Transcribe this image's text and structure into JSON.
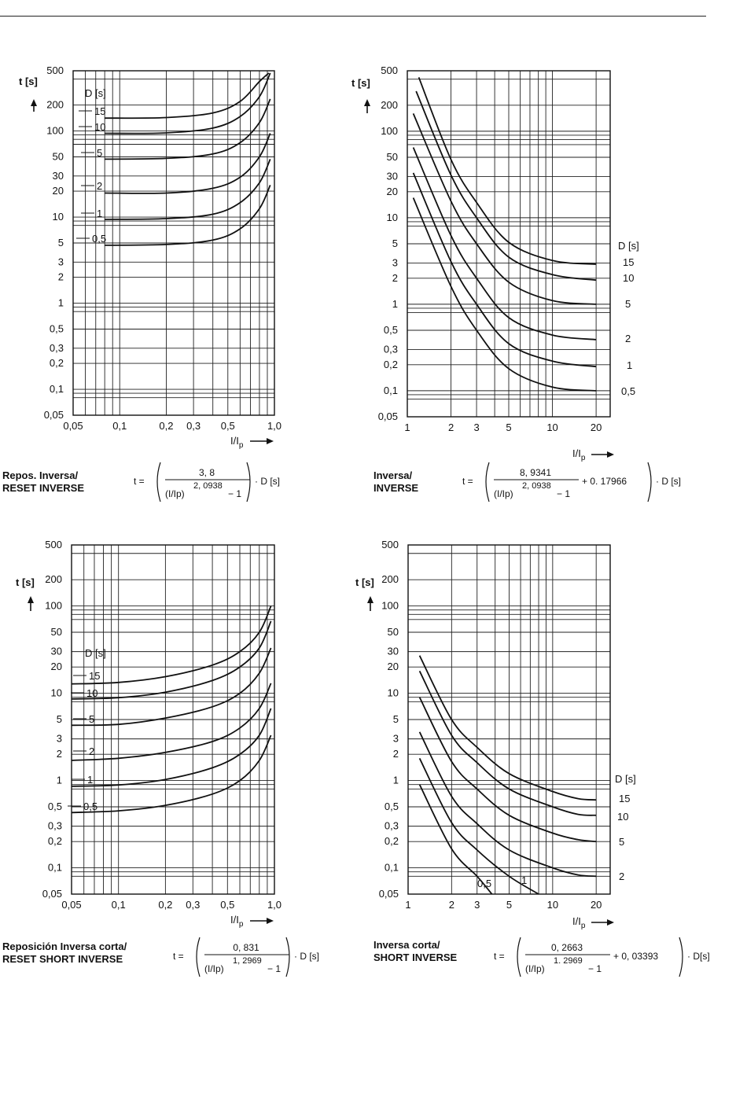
{
  "chart_data": [
    {
      "id": "reset-inverse",
      "type": "line",
      "title": "Repos. Inversa/",
      "subtitle": "RESET INVERSE",
      "xlabel": "I/Ip",
      "ylabel": "t [s]",
      "legend_title": "D [s]",
      "xscale": "log",
      "yscale": "log",
      "xlim": [
        0.05,
        1.0
      ],
      "ylim": [
        0.05,
        500
      ],
      "x_ticks": [
        "0,05",
        "0,1",
        "0,2",
        "0,3",
        "0,5",
        "1,0"
      ],
      "y_ticks": [
        "0,05",
        "0,1",
        "0,2",
        "0,3",
        "0,5",
        "1",
        "2",
        "3",
        "5",
        "10",
        "20",
        "30",
        "50",
        "100",
        "200",
        "500"
      ],
      "formula": {
        "lhs": "t =",
        "numerator": "3, 8",
        "denominator": "(I/Ip)",
        "exponent": "2, 0938",
        "minus": "− 1",
        "tail": "· D  [s]"
      },
      "series": [
        {
          "name": "15",
          "values": [
            [
              0.08,
              141
            ],
            [
              0.2,
              143
            ],
            [
              0.4,
              162
            ],
            [
              0.6,
              220
            ],
            [
              0.8,
              375
            ],
            [
              0.92,
              470
            ]
          ]
        },
        {
          "name": "10",
          "values": [
            [
              0.08,
              94
            ],
            [
              0.2,
              95
            ],
            [
              0.4,
              108
            ],
            [
              0.6,
              147
            ],
            [
              0.8,
              250
            ],
            [
              0.94,
              470
            ]
          ]
        },
        {
          "name": "5",
          "values": [
            [
              0.08,
              47
            ],
            [
              0.2,
              48
            ],
            [
              0.4,
              54
            ],
            [
              0.6,
              73
            ],
            [
              0.8,
              125
            ],
            [
              0.94,
              235
            ]
          ]
        },
        {
          "name": "2",
          "values": [
            [
              0.08,
              19
            ],
            [
              0.2,
              19
            ],
            [
              0.4,
              21.6
            ],
            [
              0.6,
              29
            ],
            [
              0.8,
              50
            ],
            [
              0.94,
              94
            ]
          ]
        },
        {
          "name": "1",
          "values": [
            [
              0.08,
              9.4
            ],
            [
              0.2,
              9.6
            ],
            [
              0.4,
              10.8
            ],
            [
              0.6,
              14.7
            ],
            [
              0.8,
              25
            ],
            [
              0.94,
              47
            ]
          ]
        },
        {
          "name": "0,5",
          "values": [
            [
              0.08,
              4.7
            ],
            [
              0.2,
              4.8
            ],
            [
              0.4,
              5.4
            ],
            [
              0.6,
              7.3
            ],
            [
              0.8,
              12.5
            ],
            [
              0.94,
              23.5
            ]
          ]
        }
      ]
    },
    {
      "id": "inverse",
      "type": "line",
      "title": "Inversa/",
      "subtitle": "INVERSE",
      "xlabel": "I/Ip",
      "ylabel": "t [s]",
      "legend_title": "D [s]",
      "xscale": "log",
      "yscale": "log",
      "xlim": [
        1,
        25
      ],
      "ylim": [
        0.05,
        500
      ],
      "x_ticks": [
        "1",
        "2",
        "3",
        "5",
        "10",
        "20"
      ],
      "y_ticks": [
        "0,05",
        "0,1",
        "0,2",
        "0,3",
        "0,5",
        "1",
        "2",
        "3",
        "5",
        "10",
        "20",
        "30",
        "50",
        "100",
        "200",
        "500"
      ],
      "formula": {
        "lhs": "t =",
        "numerator": "8, 9341",
        "denominator": "(I/Ip)",
        "exponent": "2, 0938",
        "minus": "− 1",
        "plus": "+ 0. 17966",
        "tail": "· D [s]"
      },
      "series": [
        {
          "name": "15",
          "values": [
            [
              1.2,
              420
            ],
            [
              2,
              47
            ],
            [
              3,
              15
            ],
            [
              5,
              5.2
            ],
            [
              10,
              3.2
            ],
            [
              20,
              2.9
            ]
          ]
        },
        {
          "name": "10",
          "values": [
            [
              1.15,
              290
            ],
            [
              2,
              31
            ],
            [
              3,
              10
            ],
            [
              5,
              3.5
            ],
            [
              10,
              2.2
            ],
            [
              20,
              1.9
            ]
          ]
        },
        {
          "name": "5",
          "values": [
            [
              1.1,
              160
            ],
            [
              2,
              15.5
            ],
            [
              3,
              5
            ],
            [
              5,
              1.8
            ],
            [
              10,
              1.1
            ],
            [
              20,
              1.0
            ]
          ]
        },
        {
          "name": "2",
          "values": [
            [
              1.1,
              65
            ],
            [
              2,
              6.2
            ],
            [
              3,
              2
            ],
            [
              5,
              0.7
            ],
            [
              10,
              0.44
            ],
            [
              20,
              0.39
            ]
          ]
        },
        {
          "name": "1",
          "values": [
            [
              1.1,
              33
            ],
            [
              2,
              3.1
            ],
            [
              3,
              1
            ],
            [
              5,
              0.35
            ],
            [
              10,
              0.22
            ],
            [
              20,
              0.19
            ]
          ]
        },
        {
          "name": "0,5",
          "values": [
            [
              1.1,
              17
            ],
            [
              2,
              1.6
            ],
            [
              3,
              0.5
            ],
            [
              5,
              0.18
            ],
            [
              10,
              0.11
            ],
            [
              20,
              0.1
            ]
          ]
        }
      ]
    },
    {
      "id": "reset-short-inverse",
      "type": "line",
      "title": "Reposición Inversa corta/",
      "subtitle": "RESET SHORT INVERSE",
      "xlabel": "I/Ip",
      "ylabel": "t [s]",
      "legend_title": "D [s]",
      "xscale": "log",
      "yscale": "log",
      "xlim": [
        0.05,
        1.0
      ],
      "ylim": [
        0.05,
        500
      ],
      "x_ticks": [
        "0,05",
        "0,1",
        "0,2",
        "0,3",
        "0,5",
        "1,0"
      ],
      "y_ticks": [
        "0,05",
        "0,1",
        "0,2",
        "0,3",
        "0,5",
        "1",
        "2",
        "3",
        "5",
        "10",
        "20",
        "30",
        "50",
        "100",
        "200",
        "500"
      ],
      "formula": {
        "lhs": "t =",
        "numerator": "0, 831",
        "denominator": "(I/Ip)",
        "exponent": "1, 2969",
        "minus": "− 1",
        "tail": "· D  [s]"
      },
      "series": [
        {
          "name": "15",
          "values": [
            [
              0.05,
              12.8
            ],
            [
              0.1,
              13.3
            ],
            [
              0.2,
              15.5
            ],
            [
              0.4,
              21
            ],
            [
              0.6,
              30
            ],
            [
              0.8,
              50
            ],
            [
              0.95,
              100
            ]
          ]
        },
        {
          "name": "10",
          "values": [
            [
              0.05,
              8.6
            ],
            [
              0.1,
              8.9
            ],
            [
              0.2,
              10.3
            ],
            [
              0.4,
              14
            ],
            [
              0.6,
              20
            ],
            [
              0.8,
              33
            ],
            [
              0.95,
              67
            ]
          ]
        },
        {
          "name": "5",
          "values": [
            [
              0.05,
              4.3
            ],
            [
              0.1,
              4.4
            ],
            [
              0.2,
              5.2
            ],
            [
              0.4,
              7
            ],
            [
              0.6,
              10
            ],
            [
              0.8,
              17
            ],
            [
              0.95,
              33
            ]
          ]
        },
        {
          "name": "2",
          "values": [
            [
              0.05,
              1.7
            ],
            [
              0.1,
              1.8
            ],
            [
              0.2,
              2.1
            ],
            [
              0.4,
              2.8
            ],
            [
              0.6,
              4
            ],
            [
              0.8,
              6.7
            ],
            [
              0.95,
              13
            ]
          ]
        },
        {
          "name": "1",
          "values": [
            [
              0.05,
              0.86
            ],
            [
              0.1,
              0.89
            ],
            [
              0.2,
              1.03
            ],
            [
              0.4,
              1.4
            ],
            [
              0.6,
              2
            ],
            [
              0.8,
              3.3
            ],
            [
              0.95,
              6.7
            ]
          ]
        },
        {
          "name": "0,5",
          "values": [
            [
              0.05,
              0.43
            ],
            [
              0.1,
              0.45
            ],
            [
              0.2,
              0.52
            ],
            [
              0.4,
              0.7
            ],
            [
              0.6,
              1
            ],
            [
              0.8,
              1.7
            ],
            [
              0.95,
              3.3
            ]
          ]
        }
      ]
    },
    {
      "id": "short-inverse",
      "type": "line",
      "title": "Inversa corta/",
      "subtitle": "SHORT INVERSE",
      "xlabel": "I/Ip",
      "ylabel": "t [s]",
      "legend_title": "D [s]",
      "xscale": "log",
      "yscale": "log",
      "xlim": [
        1,
        25
      ],
      "ylim": [
        0.05,
        500
      ],
      "x_ticks": [
        "1",
        "2",
        "3",
        "5",
        "10",
        "20"
      ],
      "y_ticks": [
        "0,05",
        "0,1",
        "0,2",
        "0,3",
        "0,5",
        "1",
        "2",
        "3",
        "5",
        "10",
        "20",
        "30",
        "50",
        "100",
        "200",
        "500"
      ],
      "formula": {
        "lhs": "t =",
        "numerator": "0, 2663",
        "denominator": "(I/Ip)",
        "exponent": "1. 2969",
        "minus": "− 1",
        "plus": "+ 0, 03393",
        "tail": "· D[s]"
      },
      "series": [
        {
          "name": "15",
          "values": [
            [
              1.2,
              27
            ],
            [
              2,
              5
            ],
            [
              3,
              2.4
            ],
            [
              5,
              1.2
            ],
            [
              10,
              0.75
            ],
            [
              15,
              0.62
            ],
            [
              20,
              0.6
            ]
          ]
        },
        {
          "name": "10",
          "values": [
            [
              1.2,
              18
            ],
            [
              2,
              3.3
            ],
            [
              3,
              1.6
            ],
            [
              5,
              0.8
            ],
            [
              10,
              0.5
            ],
            [
              15,
              0.41
            ],
            [
              20,
              0.4
            ]
          ]
        },
        {
          "name": "5",
          "values": [
            [
              1.2,
              9
            ],
            [
              2,
              1.65
            ],
            [
              3,
              0.8
            ],
            [
              5,
              0.4
            ],
            [
              10,
              0.25
            ],
            [
              15,
              0.21
            ],
            [
              20,
              0.2
            ]
          ]
        },
        {
          "name": "2",
          "values": [
            [
              1.2,
              3.6
            ],
            [
              2,
              0.66
            ],
            [
              3,
              0.32
            ],
            [
              5,
              0.16
            ],
            [
              10,
              0.1
            ],
            [
              15,
              0.083
            ],
            [
              20,
              0.08
            ]
          ]
        },
        {
          "name": "1",
          "values": [
            [
              1.2,
              1.8
            ],
            [
              2,
              0.33
            ],
            [
              3,
              0.16
            ],
            [
              5,
              0.08
            ],
            [
              8,
              0.05
            ]
          ]
        },
        {
          "name": "0,5",
          "values": [
            [
              1.2,
              0.9
            ],
            [
              2,
              0.165
            ],
            [
              3,
              0.08
            ],
            [
              3.8,
              0.05
            ]
          ]
        }
      ]
    }
  ]
}
